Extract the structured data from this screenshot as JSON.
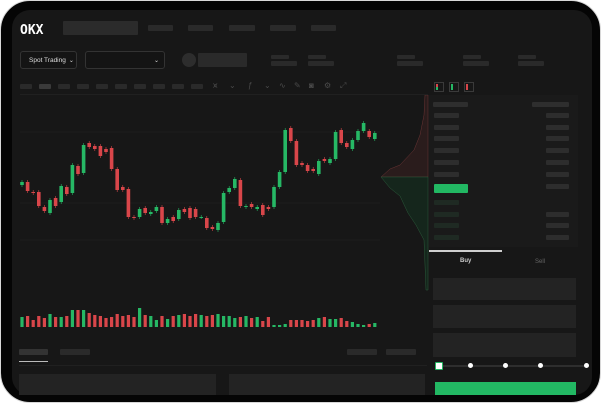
{
  "brand": {
    "logo_text": "OKX"
  },
  "header": {
    "market_button_label": "Spot Trading"
  },
  "trade": {
    "tabs": [
      {
        "label": "Buy",
        "active": true
      },
      {
        "label": "Sell",
        "active": false
      }
    ],
    "leverage_slider_value_percent": 0
  },
  "colors": {
    "up": "#26b865",
    "down": "#d9464a",
    "background": "#171717",
    "accent": "#22b863"
  },
  "icons": [
    "chevron-down-icon",
    "orderbook-both-icon",
    "orderbook-bids-icon",
    "orderbook-asks-icon",
    "line-chart-icon",
    "pencil-icon",
    "camera-icon",
    "settings-icon",
    "fullscreen-icon"
  ],
  "chart_data": {
    "type": "candlestick",
    "candles": [
      [
        55,
        58
      ],
      [
        58,
        49
      ],
      [
        48,
        47
      ],
      [
        48,
        34
      ],
      [
        33,
        29
      ],
      [
        27,
        40
      ],
      [
        42,
        34
      ],
      [
        38,
        54
      ],
      [
        53,
        46
      ],
      [
        47,
        75
      ],
      [
        74,
        66
      ],
      [
        67,
        95
      ],
      [
        97,
        93
      ],
      [
        94,
        91
      ],
      [
        94,
        84
      ],
      [
        91,
        88
      ],
      [
        92,
        71
      ],
      [
        71,
        50
      ],
      [
        53,
        50
      ],
      [
        51,
        23
      ],
      [
        23,
        22
      ],
      [
        23,
        31
      ],
      [
        32,
        27
      ],
      [
        26,
        28
      ],
      [
        29,
        33
      ],
      [
        33,
        17
      ],
      [
        17,
        21
      ],
      [
        23,
        19
      ],
      [
        21,
        30
      ],
      [
        31,
        28
      ],
      [
        32,
        22
      ],
      [
        31,
        23
      ],
      [
        23,
        23
      ],
      [
        22,
        12
      ],
      [
        13,
        11
      ],
      [
        10,
        17
      ],
      [
        18,
        47
      ],
      [
        48,
        52
      ],
      [
        52,
        61
      ],
      [
        60,
        34
      ],
      [
        33,
        34
      ],
      [
        36,
        33
      ],
      [
        31,
        33
      ],
      [
        35,
        25
      ],
      [
        33,
        31
      ],
      [
        33,
        53
      ],
      [
        53,
        68
      ],
      [
        68,
        110
      ],
      [
        112,
        99
      ],
      [
        99,
        75
      ],
      [
        77,
        75
      ],
      [
        75,
        69
      ],
      [
        71,
        69
      ],
      [
        66,
        79
      ],
      [
        81,
        79
      ],
      [
        77,
        81
      ],
      [
        81,
        108
      ],
      [
        110,
        97
      ],
      [
        97,
        93
      ],
      [
        91,
        100
      ],
      [
        100,
        109
      ],
      [
        109,
        117
      ],
      [
        109,
        103
      ],
      [
        101,
        107
      ]
    ],
    "volume": [
      10,
      11,
      7,
      11,
      9,
      13,
      10,
      10,
      11,
      17,
      17,
      17,
      14,
      12,
      11,
      9,
      10,
      13,
      11,
      12,
      10,
      19,
      12,
      11,
      7,
      11,
      8,
      11,
      12,
      13,
      11,
      13,
      12,
      11,
      12,
      13,
      11,
      11,
      9,
      10,
      11,
      9,
      10,
      6,
      10,
      2,
      2,
      3,
      7,
      7,
      7,
      6,
      7,
      9,
      10,
      8,
      8,
      9,
      6,
      5,
      3,
      2,
      3,
      4
    ]
  }
}
